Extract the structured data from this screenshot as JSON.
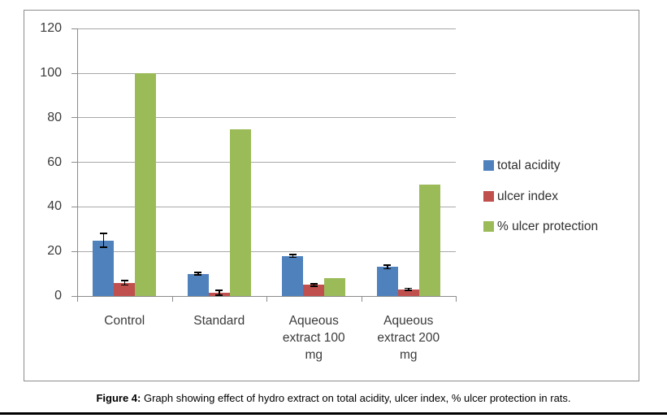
{
  "chart_data": {
    "type": "bar",
    "title": "",
    "xlabel": "",
    "ylabel": "",
    "categories": [
      "Control",
      "Standard",
      "Aqueous extract 100 mg",
      "Aqueous extract 200 mg"
    ],
    "series": [
      {
        "name": "total acidity",
        "color": "#4F81BD",
        "values": [
          25,
          10,
          18,
          13
        ],
        "error_bars": [
          3,
          0.6,
          0.7,
          0.8
        ]
      },
      {
        "name": "ulcer index",
        "color": "#C0504D",
        "values": [
          6,
          1.5,
          5,
          3
        ],
        "error_bars": [
          1,
          1,
          0.6,
          0.5
        ]
      },
      {
        "name": "% ulcer protection",
        "color": "#9BBB59",
        "values": [
          100,
          75,
          8,
          50
        ],
        "error_bars": [
          null,
          null,
          null,
          null
        ]
      }
    ],
    "ylim": [
      0,
      120
    ],
    "yticks": [
      0,
      20,
      40,
      60,
      80,
      100,
      120
    ],
    "grid": true,
    "legend_position": "right",
    "error_bar_color": "#000000"
  },
  "caption": {
    "label": "Figure 4:",
    "text": " Graph showing effect of hydro extract on total acidity, ulcer index, % ulcer protection in rats."
  },
  "colors": {
    "gridline": "#a8a8a8",
    "axis": "#8c8c8c",
    "chart_border": "#8c8c8c",
    "axis_text": "#3b3b3b"
  }
}
